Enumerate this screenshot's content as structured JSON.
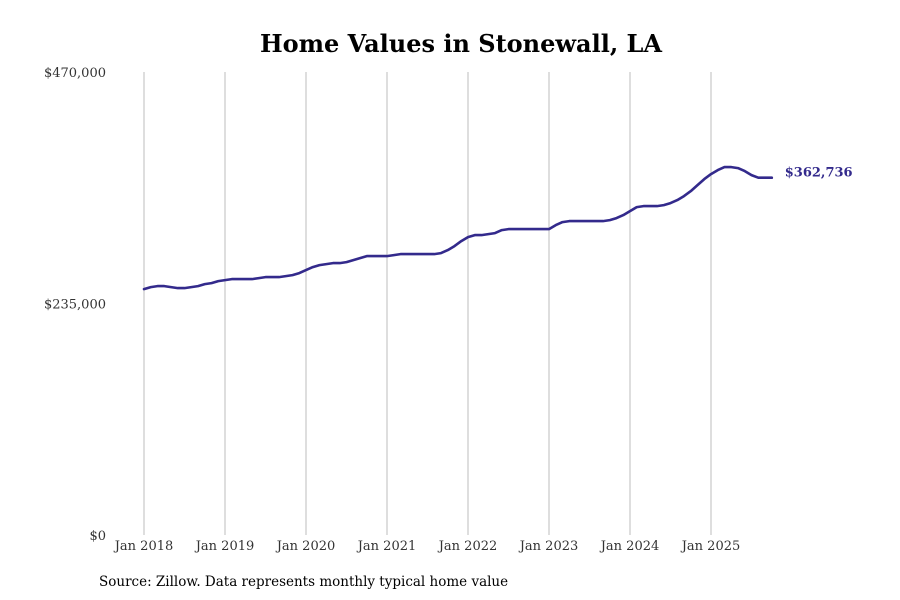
{
  "chart_data": {
    "type": "line",
    "title": "Home Values in Stonewall, LA",
    "xlabel": "",
    "ylabel": "",
    "ylim": [
      0,
      470000
    ],
    "yticks": [
      0,
      235000,
      470000
    ],
    "ytick_labels": [
      "$0",
      "$235,000",
      "$470,000"
    ],
    "xtick_labels": [
      "Jan 2018",
      "Jan 2019",
      "Jan 2020",
      "Jan 2021",
      "Jan 2022",
      "Jan 2023",
      "Jan 2024",
      "Jan 2025"
    ],
    "grid": "vertical",
    "line_color": "#332a8c",
    "series": [
      {
        "name": "Typical home value",
        "start": "Jan 2018",
        "frequency": "monthly",
        "values": [
          249660,
          251690,
          252710,
          252710,
          251690,
          250680,
          250680,
          251690,
          252710,
          254740,
          255750,
          257780,
          258800,
          259810,
          259810,
          259810,
          259810,
          260830,
          261840,
          261840,
          261840,
          262860,
          263870,
          265900,
          268950,
          271990,
          274020,
          275040,
          276060,
          276060,
          277070,
          279100,
          281130,
          283160,
          283160,
          283160,
          283160,
          284180,
          285190,
          285190,
          285190,
          285190,
          285190,
          285190,
          286210,
          289250,
          293310,
          298390,
          302450,
          304480,
          304480,
          305500,
          306510,
          309560,
          310570,
          310570,
          310570,
          310570,
          310570,
          310570,
          310570,
          314630,
          317680,
          318690,
          318690,
          318690,
          318690,
          318690,
          318690,
          319710,
          321740,
          324780,
          328840,
          332900,
          333920,
          333920,
          333920,
          334930,
          336960,
          340010,
          344070,
          349140,
          355230,
          361320,
          366400,
          370460,
          373510,
          373510,
          372490,
          369450,
          365390,
          362736,
          362736,
          362736
        ]
      }
    ],
    "end_label": "$362,736",
    "source": "Source: Zillow. Data represents monthly typical home value"
  }
}
